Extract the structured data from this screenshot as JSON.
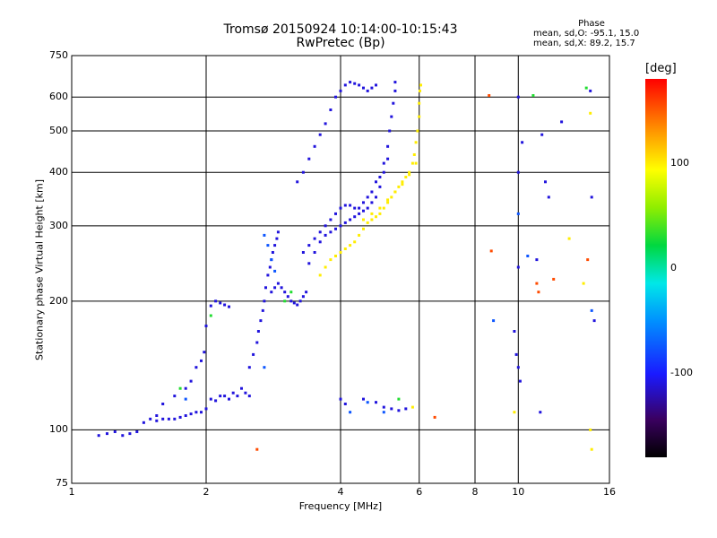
{
  "header": {
    "title": "Tromsø 20150924 10:14:00-10:15:43",
    "subtitle": "RwPretec (Bp)",
    "phase_title": "Phase",
    "phase_o": "mean, sd,O: -95.1, 15.0",
    "phase_x": "mean, sd,X:  89.2, 15.7"
  },
  "colorbar": {
    "unit": "[deg]",
    "ticks": [
      "100",
      "0",
      "-100"
    ],
    "range": [
      -180,
      180
    ]
  },
  "chart_data": {
    "type": "scatter",
    "title": "Tromsø 20150924 10:14:00-10:15:43",
    "subtitle": "RwPretec (Bp)",
    "xlabel": "Frequency [MHz]",
    "ylabel": "Stationary phase Virtual Height [km]",
    "x_scale": "log",
    "y_scale": "log",
    "xlim": [
      1,
      16
    ],
    "ylim": [
      75,
      750
    ],
    "x_ticks": [
      "1",
      "2",
      "4",
      "6",
      "8",
      "10",
      "16"
    ],
    "x_tick_values": [
      1,
      2,
      4,
      6,
      8,
      10,
      16
    ],
    "y_ticks": [
      "75",
      "100",
      "200",
      "300",
      "400",
      "500",
      "600",
      "750"
    ],
    "y_tick_values": [
      75,
      100,
      200,
      300,
      400,
      500,
      600,
      750
    ],
    "grid": true,
    "series": [
      {
        "color_phase_deg": -110,
        "points": [
          [
            1.15,
            97
          ],
          [
            1.2,
            98
          ],
          [
            1.25,
            99
          ],
          [
            1.3,
            97
          ],
          [
            1.35,
            98
          ],
          [
            1.4,
            99
          ],
          [
            1.45,
            104
          ],
          [
            1.5,
            106
          ],
          [
            1.55,
            105
          ],
          [
            1.6,
            106
          ],
          [
            1.65,
            106
          ],
          [
            1.7,
            106
          ],
          [
            1.75,
            107
          ],
          [
            1.8,
            108
          ],
          [
            1.85,
            109
          ],
          [
            1.9,
            110
          ],
          [
            1.95,
            110
          ],
          [
            2.0,
            112
          ],
          [
            2.05,
            118
          ],
          [
            2.1,
            117
          ],
          [
            2.15,
            120
          ],
          [
            2.2,
            120
          ],
          [
            2.25,
            118
          ],
          [
            2.3,
            122
          ],
          [
            2.35,
            120
          ],
          [
            2.4,
            125
          ],
          [
            2.45,
            122
          ],
          [
            2.5,
            120
          ],
          [
            1.55,
            108
          ],
          [
            1.6,
            115
          ],
          [
            1.7,
            120
          ],
          [
            1.8,
            125
          ],
          [
            1.85,
            130
          ],
          [
            1.9,
            140
          ],
          [
            1.95,
            145
          ],
          [
            1.98,
            152
          ],
          [
            2.0,
            175
          ],
          [
            2.05,
            195
          ],
          [
            2.1,
            200
          ],
          [
            2.15,
            198
          ],
          [
            2.2,
            196
          ],
          [
            2.25,
            194
          ],
          [
            2.5,
            140
          ],
          [
            2.55,
            150
          ],
          [
            2.6,
            160
          ],
          [
            2.62,
            170
          ],
          [
            2.65,
            180
          ],
          [
            2.68,
            190
          ],
          [
            2.7,
            200
          ],
          [
            2.72,
            215
          ],
          [
            2.75,
            230
          ],
          [
            2.78,
            240
          ],
          [
            2.8,
            250
          ],
          [
            2.82,
            260
          ],
          [
            2.85,
            270
          ],
          [
            2.88,
            280
          ],
          [
            2.9,
            290
          ],
          [
            2.8,
            210
          ],
          [
            2.85,
            215
          ],
          [
            2.9,
            220
          ],
          [
            2.95,
            215
          ],
          [
            3.0,
            210
          ],
          [
            3.05,
            205
          ],
          [
            3.1,
            200
          ],
          [
            3.15,
            198
          ],
          [
            3.2,
            196
          ],
          [
            3.25,
            200
          ],
          [
            3.3,
            205
          ],
          [
            3.35,
            210
          ],
          [
            3.3,
            260
          ],
          [
            3.4,
            270
          ],
          [
            3.5,
            280
          ],
          [
            3.6,
            290
          ],
          [
            3.7,
            300
          ],
          [
            3.8,
            310
          ],
          [
            3.9,
            320
          ],
          [
            4.0,
            330
          ],
          [
            4.1,
            335
          ],
          [
            4.2,
            335
          ],
          [
            4.3,
            330
          ],
          [
            4.4,
            330
          ],
          [
            4.5,
            340
          ],
          [
            4.6,
            350
          ],
          [
            4.7,
            360
          ],
          [
            4.8,
            380
          ],
          [
            4.9,
            390
          ],
          [
            5.0,
            420
          ],
          [
            5.1,
            460
          ],
          [
            5.15,
            500
          ],
          [
            5.2,
            540
          ],
          [
            5.25,
            580
          ],
          [
            5.3,
            620
          ],
          [
            5.3,
            650
          ],
          [
            3.4,
            245
          ],
          [
            3.5,
            260
          ],
          [
            3.6,
            275
          ],
          [
            3.7,
            285
          ],
          [
            3.8,
            290
          ],
          [
            3.9,
            295
          ],
          [
            4.0,
            300
          ],
          [
            4.1,
            305
          ],
          [
            4.2,
            310
          ],
          [
            4.3,
            315
          ],
          [
            4.4,
            320
          ],
          [
            4.5,
            325
          ],
          [
            4.6,
            330
          ],
          [
            4.7,
            340
          ],
          [
            4.8,
            350
          ],
          [
            4.9,
            370
          ],
          [
            5.0,
            400
          ],
          [
            5.1,
            430
          ],
          [
            3.2,
            380
          ],
          [
            3.3,
            400
          ],
          [
            3.4,
            430
          ],
          [
            3.5,
            460
          ],
          [
            3.6,
            490
          ],
          [
            3.7,
            520
          ],
          [
            3.8,
            560
          ],
          [
            3.9,
            600
          ],
          [
            4.0,
            620
          ],
          [
            4.1,
            640
          ],
          [
            4.2,
            650
          ],
          [
            4.3,
            645
          ],
          [
            4.4,
            640
          ],
          [
            4.5,
            630
          ],
          [
            4.6,
            620
          ],
          [
            4.7,
            630
          ],
          [
            4.8,
            640
          ],
          [
            4.0,
            118
          ],
          [
            4.1,
            115
          ],
          [
            4.5,
            118
          ],
          [
            4.8,
            116
          ],
          [
            5.0,
            113
          ],
          [
            5.2,
            112
          ],
          [
            5.4,
            111
          ],
          [
            5.6,
            112
          ],
          [
            9.8,
            170
          ],
          [
            9.9,
            150
          ],
          [
            10.0,
            140
          ],
          [
            10.1,
            130
          ],
          [
            10.0,
            400
          ],
          [
            10.2,
            470
          ],
          [
            10.0,
            600
          ],
          [
            11.0,
            250
          ],
          [
            10.0,
            240
          ],
          [
            12.5,
            525
          ],
          [
            11.3,
            490
          ],
          [
            11.5,
            380
          ],
          [
            11.7,
            350
          ],
          [
            14.5,
            620
          ],
          [
            14.6,
            350
          ],
          [
            14.8,
            180
          ],
          [
            11.2,
            110
          ]
        ]
      },
      {
        "color_phase_deg": 100,
        "points": [
          [
            3.6,
            230
          ],
          [
            3.7,
            240
          ],
          [
            3.8,
            250
          ],
          [
            3.9,
            255
          ],
          [
            4.0,
            260
          ],
          [
            4.1,
            265
          ],
          [
            4.2,
            270
          ],
          [
            4.3,
            275
          ],
          [
            4.4,
            285
          ],
          [
            4.5,
            295
          ],
          [
            4.6,
            305
          ],
          [
            4.7,
            310
          ],
          [
            4.8,
            315
          ],
          [
            4.9,
            320
          ],
          [
            5.0,
            330
          ],
          [
            5.1,
            340
          ],
          [
            5.2,
            350
          ],
          [
            5.3,
            360
          ],
          [
            5.4,
            370
          ],
          [
            5.5,
            380
          ],
          [
            5.6,
            390
          ],
          [
            5.7,
            400
          ],
          [
            5.8,
            420
          ],
          [
            5.85,
            440
          ],
          [
            5.9,
            470
          ],
          [
            5.95,
            500
          ],
          [
            6.0,
            540
          ],
          [
            6.0,
            580
          ],
          [
            6.02,
            620
          ],
          [
            6.05,
            640
          ],
          [
            4.5,
            310
          ],
          [
            4.7,
            320
          ],
          [
            4.9,
            330
          ],
          [
            5.1,
            345
          ],
          [
            5.3,
            360
          ],
          [
            5.5,
            375
          ],
          [
            5.7,
            395
          ],
          [
            5.9,
            420
          ],
          [
            5.8,
            113
          ],
          [
            9.8,
            110
          ],
          [
            14.5,
            100
          ],
          [
            14.5,
            550
          ],
          [
            13.0,
            280
          ],
          [
            14.0,
            220
          ],
          [
            14.6,
            90
          ]
        ]
      },
      {
        "color_phase_deg": -75,
        "points": [
          [
            2.7,
            285
          ],
          [
            2.75,
            270
          ],
          [
            2.8,
            250
          ],
          [
            2.85,
            235
          ],
          [
            2.7,
            140
          ],
          [
            1.8,
            118
          ],
          [
            4.2,
            110
          ],
          [
            4.6,
            116
          ],
          [
            5.0,
            110
          ],
          [
            8.8,
            180
          ],
          [
            10.0,
            320
          ],
          [
            10.5,
            255
          ],
          [
            14.6,
            190
          ]
        ]
      },
      {
        "color_phase_deg": 30,
        "points": [
          [
            1.75,
            125
          ],
          [
            2.05,
            185
          ],
          [
            3.0,
            200
          ],
          [
            3.1,
            210
          ],
          [
            5.4,
            118
          ],
          [
            10.8,
            605
          ],
          [
            14.2,
            630
          ]
        ]
      },
      {
        "color_phase_deg": 155,
        "points": [
          [
            2.6,
            90
          ],
          [
            6.5,
            107
          ],
          [
            8.6,
            605
          ],
          [
            8.7,
            262
          ],
          [
            11.0,
            220
          ],
          [
            11.1,
            210
          ],
          [
            12.0,
            225
          ],
          [
            14.3,
            250
          ]
        ]
      }
    ]
  }
}
